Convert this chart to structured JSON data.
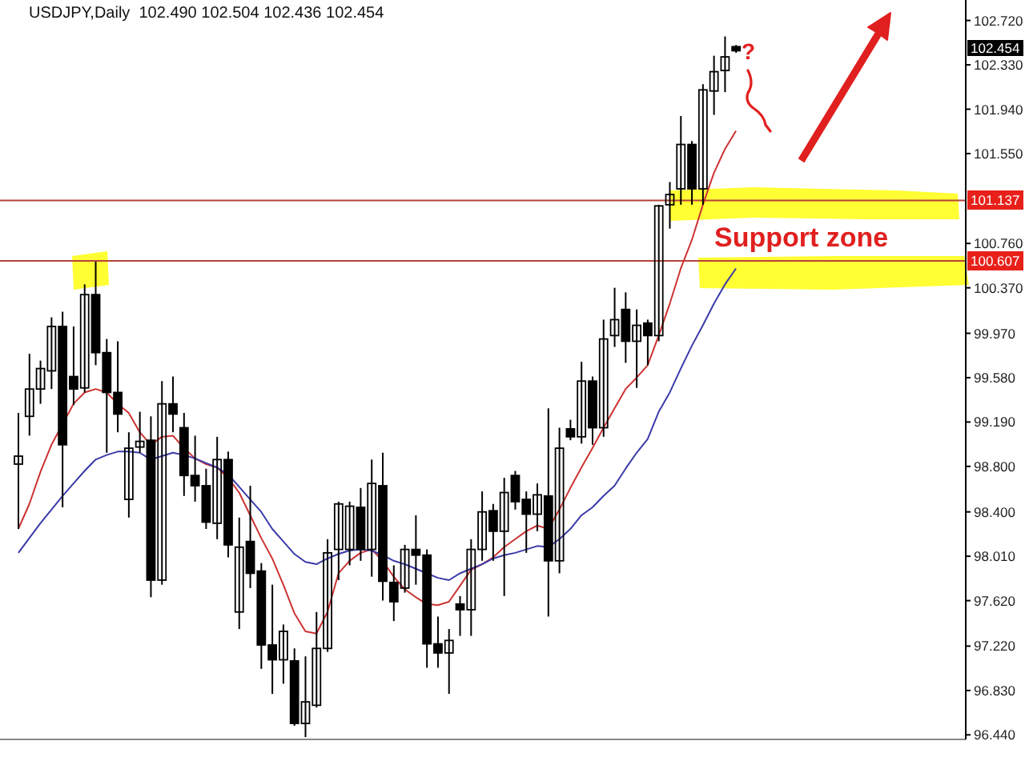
{
  "chart_data": {
    "type": "candlestick",
    "title": "USDJPY,Daily  102.490 102.504 102.436 102.454",
    "categories": [
      null,
      null,
      null,
      null,
      null,
      null,
      null,
      null,
      null,
      null,
      null,
      null,
      null,
      null,
      null,
      null,
      null,
      null,
      null,
      null,
      null,
      null,
      null,
      null,
      null,
      null,
      null,
      null,
      null,
      null,
      null,
      null,
      null,
      null,
      null,
      null,
      null,
      null,
      null,
      null,
      null,
      null,
      null,
      null,
      null,
      null,
      null,
      null,
      null,
      null,
      null,
      null,
      null,
      null,
      null,
      null,
      null,
      null,
      null,
      null,
      null,
      null,
      null,
      null,
      null,
      null
    ],
    "ohlc": [
      [
        98.82,
        99.27,
        98.25,
        98.89
      ],
      [
        99.24,
        99.79,
        99.07,
        99.48
      ],
      [
        99.48,
        99.73,
        99.35,
        99.66
      ],
      [
        99.64,
        100.11,
        99.48,
        100.03
      ],
      [
        100.03,
        100.16,
        98.44,
        98.99
      ],
      [
        99.59,
        100.03,
        99.34,
        99.48
      ],
      [
        99.49,
        100.4,
        99.45,
        100.31
      ],
      [
        100.31,
        100.6,
        99.69,
        99.8
      ],
      [
        99.8,
        99.92,
        98.92,
        99.45
      ],
      [
        99.45,
        99.9,
        99.1,
        99.26
      ],
      [
        98.51,
        99.1,
        98.35,
        98.96
      ],
      [
        98.97,
        99.28,
        98.92,
        99.02
      ],
      [
        99.03,
        99.24,
        97.65,
        97.8
      ],
      [
        97.8,
        99.55,
        97.76,
        99.35
      ],
      [
        99.35,
        99.59,
        99.1,
        99.26
      ],
      [
        99.14,
        99.27,
        98.54,
        98.72
      ],
      [
        98.72,
        99.07,
        98.49,
        98.63
      ],
      [
        98.63,
        98.78,
        98.25,
        98.31
      ],
      [
        98.3,
        99.06,
        98.16,
        98.86
      ],
      [
        98.86,
        98.93,
        98.0,
        98.11
      ],
      [
        97.52,
        98.35,
        97.37,
        98.09
      ],
      [
        98.14,
        98.63,
        97.73,
        97.86
      ],
      [
        97.88,
        97.95,
        97.02,
        97.23
      ],
      [
        97.23,
        97.76,
        96.8,
        97.1
      ],
      [
        97.1,
        97.41,
        96.89,
        97.35
      ],
      [
        97.09,
        97.2,
        96.52,
        96.54
      ],
      [
        96.54,
        97.13,
        96.42,
        96.73
      ],
      [
        96.7,
        97.52,
        96.68,
        97.2
      ],
      [
        97.2,
        98.16,
        97.17,
        98.04
      ],
      [
        98.07,
        98.49,
        97.8,
        98.47
      ],
      [
        98.07,
        98.49,
        97.93,
        98.45
      ],
      [
        98.44,
        98.61,
        97.97,
        98.07
      ],
      [
        98.07,
        98.86,
        97.83,
        98.65
      ],
      [
        98.63,
        98.92,
        97.62,
        97.79
      ],
      [
        97.78,
        97.93,
        97.44,
        97.61
      ],
      [
        97.73,
        98.11,
        97.69,
        98.07
      ],
      [
        98.07,
        98.37,
        97.76,
        98.02
      ],
      [
        98.02,
        98.07,
        97.03,
        97.24
      ],
      [
        97.24,
        97.48,
        97.03,
        97.16
      ],
      [
        97.16,
        97.37,
        96.8,
        97.27
      ],
      [
        97.59,
        97.66,
        97.31,
        97.54
      ],
      [
        97.54,
        98.16,
        97.31,
        98.07
      ],
      [
        98.07,
        98.58,
        97.97,
        98.4
      ],
      [
        98.41,
        98.47,
        97.97,
        98.23
      ],
      [
        98.23,
        98.7,
        97.66,
        98.57
      ],
      [
        98.72,
        98.76,
        98.42,
        98.49
      ],
      [
        98.51,
        98.58,
        98.04,
        98.38
      ],
      [
        98.38,
        98.65,
        98.23,
        98.55
      ],
      [
        98.54,
        99.31,
        97.48,
        97.97
      ],
      [
        97.97,
        99.14,
        97.86,
        98.96
      ],
      [
        99.13,
        99.21,
        99.03,
        99.06
      ],
      [
        99.06,
        99.72,
        99.0,
        99.55
      ],
      [
        99.55,
        99.59,
        98.99,
        99.14
      ],
      [
        99.14,
        100.09,
        99.06,
        99.92
      ],
      [
        99.95,
        100.37,
        99.85,
        100.09
      ],
      [
        100.18,
        100.33,
        99.71,
        99.9
      ],
      [
        99.9,
        100.18,
        99.49,
        100.04
      ],
      [
        100.06,
        100.09,
        99.69,
        99.95
      ],
      [
        99.95,
        101.1,
        99.9,
        101.09
      ],
      [
        101.1,
        101.3,
        100.89,
        101.19
      ],
      [
        101.24,
        101.88,
        101.1,
        101.63
      ],
      [
        101.63,
        101.66,
        101.1,
        101.24
      ],
      [
        101.24,
        102.16,
        101.1,
        102.11
      ],
      [
        102.1,
        102.41,
        101.89,
        102.27
      ],
      [
        102.28,
        102.58,
        102.09,
        102.4
      ],
      [
        102.49,
        102.504,
        102.436,
        102.454
      ]
    ],
    "series": [
      {
        "type": "line",
        "color": "#cc3333",
        "values": [
          98.25,
          98.47,
          98.75,
          98.99,
          null,
          99.35,
          99.45,
          99.48,
          99.45,
          99.35,
          99.27,
          99.1,
          98.99,
          99.06,
          99.07,
          98.96,
          98.87,
          98.82,
          98.79,
          98.7,
          98.57,
          98.37,
          98.17,
          97.99,
          97.76,
          97.51,
          97.35,
          97.33,
          97.52,
          97.86,
          97.97,
          98.04,
          98.07,
          97.97,
          97.83,
          97.72,
          97.65,
          97.59,
          97.58,
          97.61,
          97.75,
          97.89,
          97.94,
          98.0,
          98.09,
          98.16,
          98.23,
          98.28,
          98.25,
          98.42,
          98.61,
          98.79,
          98.96,
          99.14,
          99.31,
          99.48,
          99.58,
          99.69,
          99.95,
          100.23,
          100.54,
          100.79,
          101.1,
          101.38,
          101.59,
          101.75
        ]
      },
      {
        "type": "line",
        "color": "#3a3aa8",
        "values": [
          98.04,
          98.17,
          98.3,
          98.42,
          98.54,
          98.65,
          98.76,
          98.86,
          98.9,
          98.93,
          98.93,
          98.92,
          98.86,
          98.89,
          98.92,
          98.9,
          98.87,
          98.83,
          98.79,
          98.73,
          98.62,
          98.51,
          98.4,
          98.25,
          98.14,
          98.03,
          97.96,
          97.94,
          97.99,
          98.03,
          98.06,
          98.07,
          98.06,
          98.02,
          97.97,
          97.94,
          97.9,
          97.86,
          97.82,
          97.8,
          97.86,
          97.9,
          97.94,
          97.99,
          98.02,
          98.04,
          98.07,
          98.1,
          98.09,
          98.16,
          98.25,
          98.37,
          98.44,
          98.54,
          98.63,
          98.78,
          98.92,
          99.04,
          99.28,
          99.45,
          99.66,
          99.86,
          100.04,
          100.23,
          100.4,
          100.54
        ]
      }
    ],
    "ylim": [
      96.4,
      102.9
    ],
    "yticks": [
      {
        "value": 96.44,
        "label": "96.440"
      },
      {
        "value": 96.83,
        "label": "96.830"
      },
      {
        "value": 97.22,
        "label": "97.220"
      },
      {
        "value": 97.62,
        "label": "97.620"
      },
      {
        "value": 98.01,
        "label": "98.010"
      },
      {
        "value": 98.4,
        "label": "98.400"
      },
      {
        "value": 98.8,
        "label": "98.800"
      },
      {
        "value": 99.19,
        "label": "99.190"
      },
      {
        "value": 99.58,
        "label": "99.580"
      },
      {
        "value": 99.97,
        "label": "99.970"
      },
      {
        "value": 100.37,
        "label": "100.370"
      },
      {
        "value": 100.76,
        "label": "100.760"
      },
      {
        "value": 101.55,
        "label": "101.550"
      },
      {
        "value": 101.94,
        "label": "101.940"
      },
      {
        "value": 102.33,
        "label": "102.330"
      },
      {
        "value": 102.72,
        "label": "102.720"
      }
    ],
    "tick_labels": "y",
    "ref_lines": [
      {
        "axis": "y",
        "value": 101.137,
        "label": "101.137",
        "color": "#b8413a"
      },
      {
        "axis": "y",
        "value": 100.607,
        "label": "100.607",
        "color": "#b8413a"
      }
    ],
    "annotations": [
      "Support zone",
      "?",
      "102.454"
    ]
  }
}
